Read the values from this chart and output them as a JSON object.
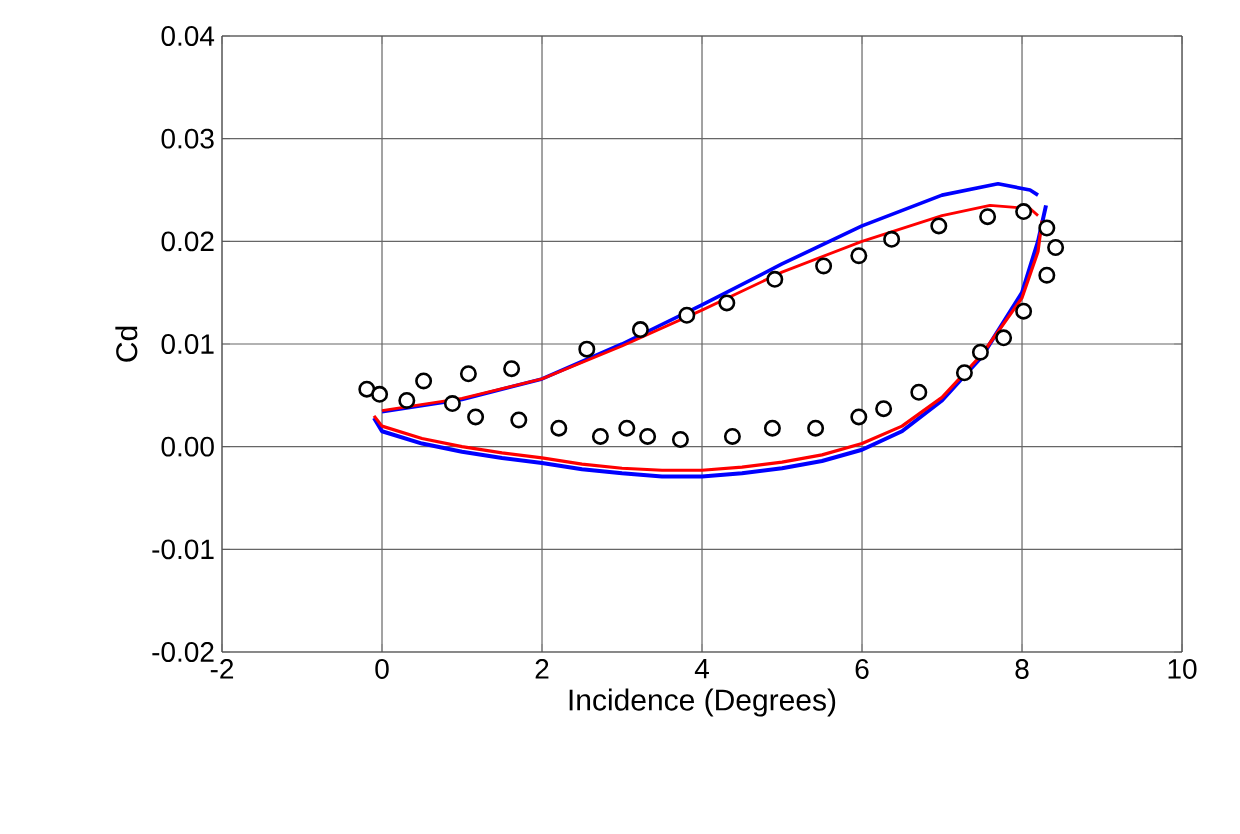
{
  "chart_data": {
    "type": "line",
    "xlabel": "Incidence (Degrees)",
    "ylabel": "Cd",
    "xlim": [
      -2,
      10
    ],
    "xticks": [
      -2,
      0,
      2,
      4,
      6,
      8,
      10
    ],
    "ylim": [
      -0.02,
      0.04
    ],
    "yticks": [
      {
        "value": -0.02,
        "label": "-0.02"
      },
      {
        "value": -0.01,
        "label": "-0.01"
      },
      {
        "value": 0,
        "label": "0.00"
      },
      {
        "value": 0.01,
        "label": "0.01"
      },
      {
        "value": 0.02,
        "label": "0.02"
      },
      {
        "value": 0.03,
        "label": "0.03"
      },
      {
        "value": 0.04,
        "label": "0.04"
      }
    ],
    "grid": true,
    "series": [
      {
        "color": "#0000ff",
        "marker": "none",
        "x": [
          -0.1,
          0,
          0.5,
          1,
          1.5,
          2,
          2.5,
          3,
          3.5,
          4,
          4.5,
          5,
          5.5,
          6,
          6.5,
          7,
          7.5,
          8,
          8.2,
          8.3
        ],
        "values": [
          0.0028,
          0.0015,
          0.0003,
          -0.0005,
          -0.0011,
          -0.0016,
          -0.0022,
          -0.0026,
          -0.0029,
          -0.0029,
          -0.0026,
          -0.0021,
          -0.0014,
          -0.0003,
          0.0015,
          0.0045,
          0.0088,
          0.015,
          0.02,
          0.0235
        ]
      },
      {
        "color": "#0000ff",
        "marker": "none",
        "x": [
          0,
          1,
          2,
          3,
          4,
          5,
          6,
          7,
          7.7,
          8.1,
          8.2
        ],
        "values": [
          0.0034,
          0.0046,
          0.0066,
          0.01,
          0.0138,
          0.0178,
          0.0215,
          0.0245,
          0.0256,
          0.025,
          0.0245
        ]
      },
      {
        "color": "#ff0000",
        "marker": "none",
        "x": [
          -0.1,
          0,
          0.5,
          1,
          1.5,
          2,
          2.5,
          3,
          3.5,
          4,
          4.5,
          5,
          5.5,
          6,
          6.5,
          7,
          7.5,
          8,
          8.2,
          8.25
        ],
        "values": [
          0.003,
          0.002,
          0.0008,
          0.0,
          -0.0006,
          -0.0011,
          -0.0017,
          -0.0021,
          -0.0023,
          -0.0023,
          -0.002,
          -0.0015,
          -0.0008,
          0.0003,
          0.002,
          0.0048,
          0.009,
          0.0145,
          0.019,
          0.022
        ]
      },
      {
        "color": "#ff0000",
        "marker": "none",
        "x": [
          0,
          1,
          2,
          3,
          4,
          5,
          6,
          7,
          7.6,
          8.1,
          8.2
        ],
        "values": [
          0.0035,
          0.0047,
          0.0066,
          0.0098,
          0.0133,
          0.017,
          0.02,
          0.0225,
          0.0235,
          0.0232,
          0.0225
        ]
      },
      {
        "type": "scatter",
        "color": "#000000",
        "marker": "circle",
        "x": [
          -0.19,
          -0.03,
          0.31,
          0.52,
          0.88,
          1.08,
          1.17,
          1.62,
          1.71,
          2.21,
          2.56,
          2.73,
          3.06,
          3.23,
          3.32,
          3.73,
          3.81,
          4.31,
          4.38,
          4.88,
          4.91,
          5.52,
          5.96,
          6.37,
          6.96,
          7.57,
          8.02,
          8.31,
          8.42,
          8.31,
          8.02,
          7.77,
          7.48,
          7.28,
          6.71,
          6.27,
          5.96,
          5.42
        ],
        "values": [
          0.0056,
          0.0051,
          0.0045,
          0.0064,
          0.0042,
          0.0071,
          0.0029,
          0.0076,
          0.0026,
          0.0018,
          0.0095,
          0.001,
          0.0018,
          0.0114,
          0.001,
          0.0007,
          0.0128,
          0.014,
          0.001,
          0.0018,
          0.0163,
          0.0176,
          0.0186,
          0.0202,
          0.0215,
          0.0224,
          0.0229,
          0.0213,
          0.0194,
          0.0167,
          0.0132,
          0.0106,
          0.0092,
          0.0072,
          0.0053,
          0.0037,
          0.0029,
          0.0018
        ]
      }
    ]
  }
}
